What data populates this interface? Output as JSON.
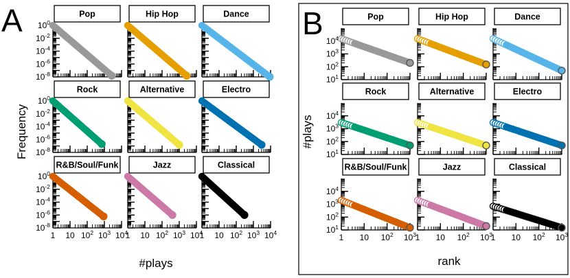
{
  "chart_data": [
    {
      "panel_label": "A",
      "type": "scatter",
      "xlabel": "#plays",
      "ylabel": "Frequency",
      "x_scale": "log",
      "y_scale": "log",
      "xlim": [
        1,
        10000
      ],
      "ylim": [
        1e-08,
        1
      ],
      "x_ticks": [
        "1",
        "10",
        "10^2",
        "10^3",
        "10^4"
      ],
      "y_ticks": [
        "10^0",
        "10^-2",
        "10^-4",
        "10^-6",
        "10^-8"
      ],
      "facets": [
        {
          "name": "Pop",
          "color": "#999999",
          "points": [
            [
              1,
              1.0
            ],
            [
              2700,
              1.5e-08
            ]
          ]
        },
        {
          "name": "Hip Hop",
          "color": "#e69f00",
          "points": [
            [
              1,
              1.0
            ],
            [
              2700,
              1.5e-08
            ]
          ]
        },
        {
          "name": "Dance",
          "color": "#56b4e9",
          "points": [
            [
              1,
              1.0
            ],
            [
              9000,
              1e-08
            ]
          ]
        },
        {
          "name": "Rock",
          "color": "#009e73",
          "points": [
            [
              1,
              1.0
            ],
            [
              700,
              2e-07
            ]
          ]
        },
        {
          "name": "Alternative",
          "color": "#f0e442",
          "points": [
            [
              1,
              1.0
            ],
            [
              1000,
              1.5e-07
            ]
          ]
        },
        {
          "name": "Electro",
          "color": "#0072b2",
          "points": [
            [
              1,
              1.0
            ],
            [
              3000,
              1.5e-07
            ]
          ]
        },
        {
          "name": "R&B/Soul/Funk",
          "color": "#d55e00",
          "points": [
            [
              1,
              1.0
            ],
            [
              900,
              6e-07
            ]
          ]
        },
        {
          "name": "Jazz",
          "color": "#cc79a7",
          "points": [
            [
              1,
              1.0
            ],
            [
              400,
              1e-06
            ]
          ]
        },
        {
          "name": "Classical",
          "color": "#000000",
          "points": [
            [
              1,
              1.0
            ],
            [
              300,
              1e-06
            ]
          ]
        }
      ]
    },
    {
      "panel_label": "B",
      "type": "scatter",
      "xlabel": "rank",
      "ylabel": "#plays",
      "x_scale": "log",
      "y_scale": "log",
      "xlim": [
        1,
        1000
      ],
      "ylim": [
        10,
        100000
      ],
      "x_ticks": [
        "1",
        "10",
        "10^2",
        "10^3"
      ],
      "y_ticks": [
        "10^1",
        "10^2",
        "10^3",
        "10^4"
      ],
      "facets": [
        {
          "name": "Pop",
          "color": "#999999",
          "points": [
            [
              1,
              15000
            ],
            [
              1000,
              200
            ]
          ]
        },
        {
          "name": "Hip Hop",
          "color": "#e69f00",
          "points": [
            [
              1,
              15000
            ],
            [
              1000,
              150
            ]
          ]
        },
        {
          "name": "Dance",
          "color": "#56b4e9",
          "points": [
            [
              1,
              15000
            ],
            [
              1000,
              50
            ]
          ]
        },
        {
          "name": "Rock",
          "color": "#009e73",
          "points": [
            [
              1,
              3000
            ],
            [
              1000,
              50
            ]
          ]
        },
        {
          "name": "Alternative",
          "color": "#f0e442",
          "points": [
            [
              1,
              3000
            ],
            [
              1000,
              50
            ]
          ]
        },
        {
          "name": "Electro",
          "color": "#0072b2",
          "points": [
            [
              1,
              3000
            ],
            [
              1000,
              50
            ]
          ]
        },
        {
          "name": "R&B/Soul/Funk",
          "color": "#d55e00",
          "points": [
            [
              1,
              2000
            ],
            [
              1000,
              15
            ]
          ]
        },
        {
          "name": "Jazz",
          "color": "#cc79a7",
          "points": [
            [
              1,
              2000
            ],
            [
              1000,
              20
            ]
          ]
        },
        {
          "name": "Classical",
          "color": "#000000",
          "points": [
            [
              1,
              700
            ],
            [
              1000,
              15
            ]
          ]
        }
      ]
    }
  ]
}
